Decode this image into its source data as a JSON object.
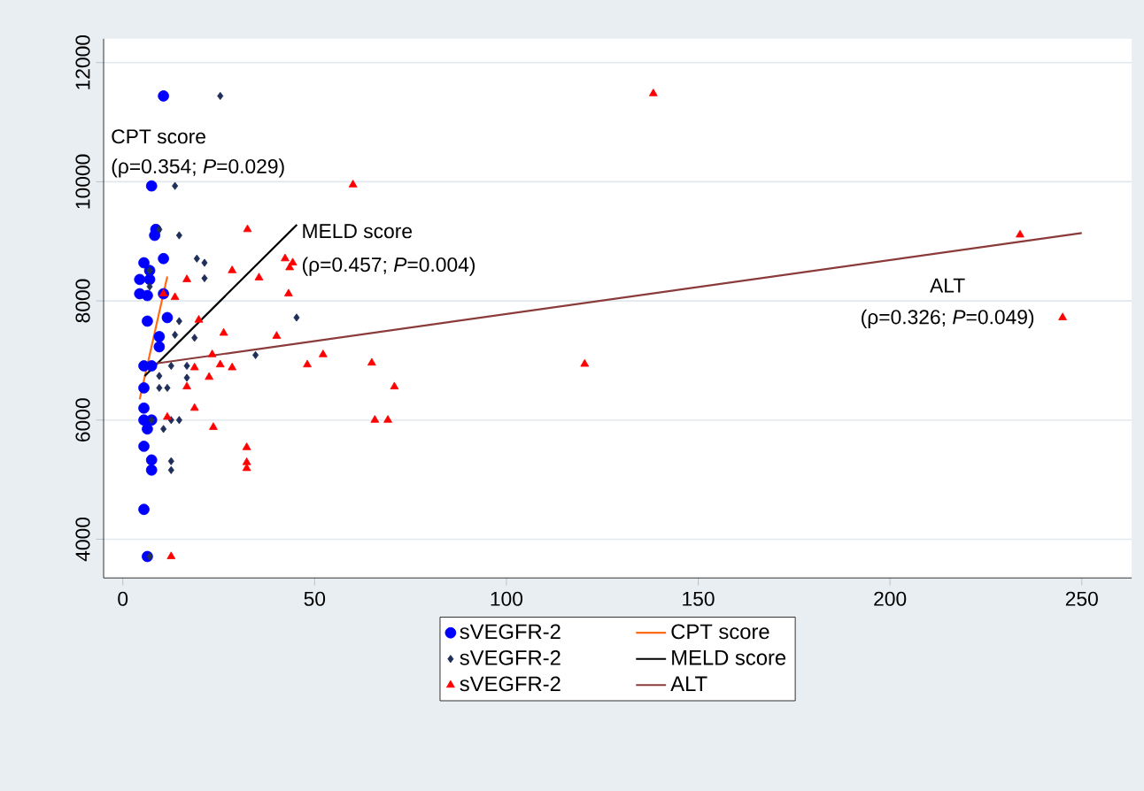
{
  "chart_data": {
    "type": "scatter",
    "xlim": [
      -5,
      263
    ],
    "ylim": [
      3350,
      12400
    ],
    "xticks": [
      0,
      50,
      100,
      150,
      200,
      250
    ],
    "yticks": [
      4000,
      6000,
      8000,
      10000,
      12000
    ],
    "grid": "y",
    "legend": "bottom",
    "annotations": [
      "CPT score",
      "(ρ=0.354; *P*=0.029)",
      "MELD score",
      "(ρ=0.457; *P*=0.004)",
      "ALT",
      "(ρ=0.326; *P*=0.049)"
    ],
    "series": [
      {
        "name": "sVEGFR-2",
        "marker": "circle",
        "color": "#0000ff",
        "x": [
          10.6,
          7.5,
          8.6,
          8.3,
          5.5,
          10.6,
          7.0,
          4.4,
          7.0,
          4.4,
          6.4,
          10.6,
          6.4,
          11.6,
          9.5,
          9.5,
          5.5,
          7.5,
          5.5,
          5.5,
          5.5,
          7.5,
          6.4,
          5.5,
          7.5,
          7.5,
          5.5,
          6.4
        ],
        "values": [
          11440,
          9930,
          9200,
          9100,
          8640,
          8710,
          8510,
          8360,
          8360,
          8120,
          8090,
          8120,
          7660,
          7720,
          7400,
          7230,
          6910,
          6910,
          6540,
          6200,
          6000,
          6000,
          5850,
          5560,
          5330,
          5160,
          4500,
          3710
        ]
      },
      {
        "name": "CPT score",
        "type": "line",
        "line_style": "solid",
        "color": "#ff6a13",
        "x": [
          4.4,
          11.6
        ],
        "values": [
          6350,
          8410
        ]
      },
      {
        "name": "sVEGFR-2",
        "marker": "diamond",
        "color": "#1f2f5a",
        "x": [
          25.4,
          13.6,
          9.5,
          14.7,
          19.3,
          21.3,
          21.3,
          7.0,
          7.0,
          14.7,
          13.6,
          18.7,
          45.3,
          12.6,
          16.7,
          34.6,
          9.5,
          16.7,
          9.5,
          11.6,
          7.5,
          14.7,
          10.6,
          12.6,
          12.6,
          12.6,
          7.0
        ],
        "values": [
          11440,
          9930,
          9200,
          9100,
          8710,
          8640,
          8380,
          8510,
          8240,
          7660,
          7430,
          7380,
          7720,
          6910,
          6910,
          7090,
          6740,
          6710,
          6540,
          6540,
          6000,
          6000,
          5850,
          6000,
          5310,
          5160,
          3710
        ]
      },
      {
        "name": "MELD score",
        "type": "line",
        "line_style": "solid",
        "color": "#000000",
        "x": [
          5.7,
          45.4
        ],
        "values": [
          6740,
          9280
        ]
      },
      {
        "name": "sVEGFR-2",
        "marker": "triangle",
        "color": "#ff0000",
        "x": [
          32.5,
          60.0,
          42.3,
          44.3,
          43.5,
          28.5,
          35.5,
          16.7,
          13.6,
          43.2,
          10.6,
          19.8,
          26.3,
          40.1,
          23.3,
          28.5,
          25.4,
          18.7,
          52.2,
          48.1,
          22.5,
          16.7,
          18.7,
          23.6,
          11.6,
          32.3,
          32.3,
          32.3,
          12.6,
          64.9,
          120.4,
          70.8,
          65.7,
          69.1,
          138.3,
          233.9,
          245.0
        ],
        "values": [
          9200,
          9950,
          8710,
          8640,
          8560,
          8510,
          8390,
          8360,
          8060,
          8120,
          8120,
          7680,
          7460,
          7410,
          7100,
          6880,
          6930,
          6880,
          7100,
          6930,
          6720,
          6560,
          6200,
          5880,
          6050,
          5540,
          5290,
          5190,
          3710,
          6960,
          6940,
          6560,
          6000,
          6000,
          11480,
          9110,
          7720
        ]
      },
      {
        "name": "ALT",
        "type": "line",
        "line_style": "solid",
        "color": "#8b3a3a",
        "x": [
          7.5,
          250
        ],
        "values": [
          6940,
          9140
        ]
      }
    ]
  }
}
